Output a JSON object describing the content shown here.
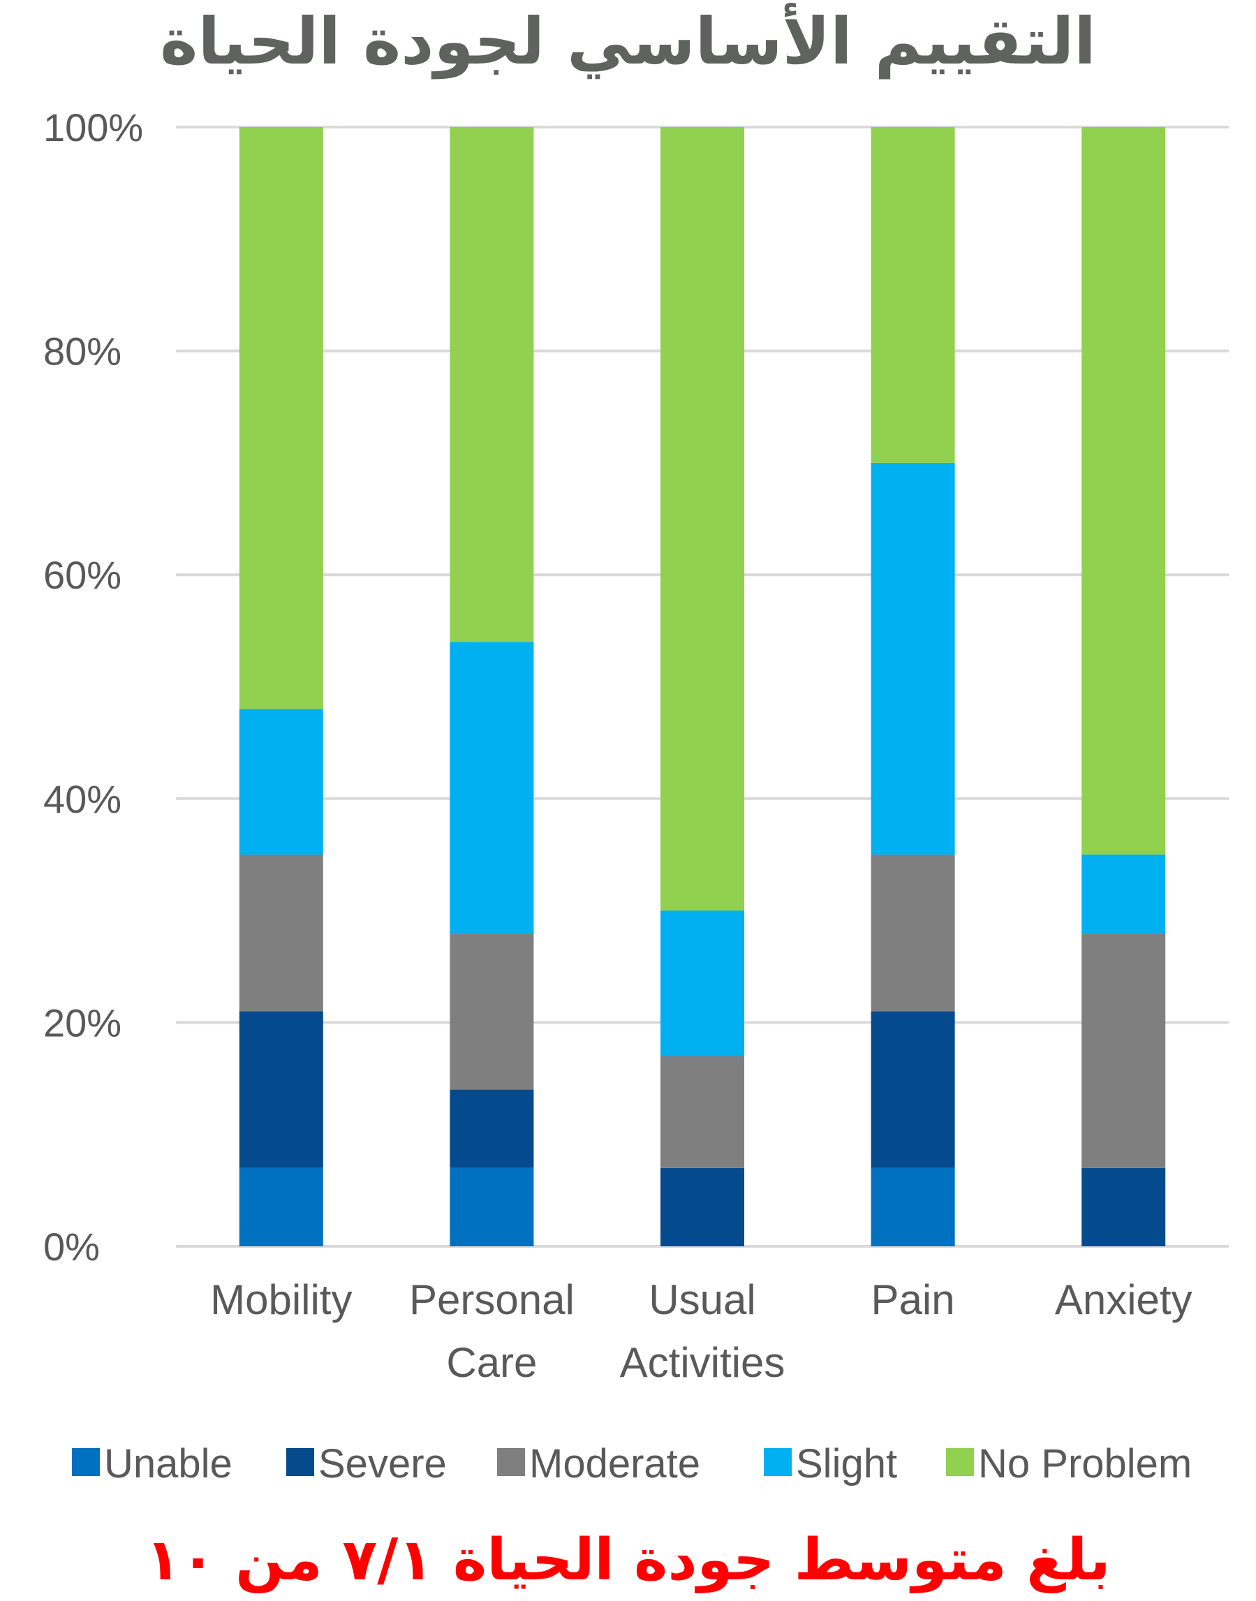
{
  "chart_data": {
    "type": "bar",
    "stacked": true,
    "stack_mode": "percent",
    "title": "التقييم الأساسي لجودة الحياة",
    "categories": [
      [
        "Mobility"
      ],
      [
        "Personal",
        "Care"
      ],
      [
        "Usual",
        "Activities"
      ],
      [
        "Pain"
      ],
      [
        "Anxiety"
      ]
    ],
    "series": [
      {
        "name": "Unable",
        "color": "#0070c0",
        "values": [
          7,
          7,
          0,
          7,
          0
        ]
      },
      {
        "name": "Severe",
        "color": "#044a8c",
        "values": [
          14,
          7,
          7,
          14,
          7
        ]
      },
      {
        "name": "Moderate",
        "color": "#7f7f7f",
        "values": [
          14,
          14,
          10,
          14,
          21
        ]
      },
      {
        "name": "Slight",
        "color": "#00b0f0",
        "values": [
          13,
          26,
          13,
          35,
          7
        ]
      },
      {
        "name": "No Problem",
        "color": "#92d050",
        "values": [
          52,
          46,
          70,
          30,
          65
        ]
      }
    ],
    "y_ticks": [
      "0%",
      "20%",
      "40%",
      "60%",
      "80%",
      "100%"
    ],
    "ylim": [
      0,
      100
    ],
    "grid": true,
    "legend_position": "bottom",
    "xlabel": "",
    "ylabel": ""
  },
  "footer_note": "بلغ متوسط جودة الحياة ٧/١ من ١٠",
  "colors": {
    "title": "#5f625f",
    "footer": "#ff0000",
    "grid": "#d9d9d9",
    "axis_text": "#595959"
  }
}
